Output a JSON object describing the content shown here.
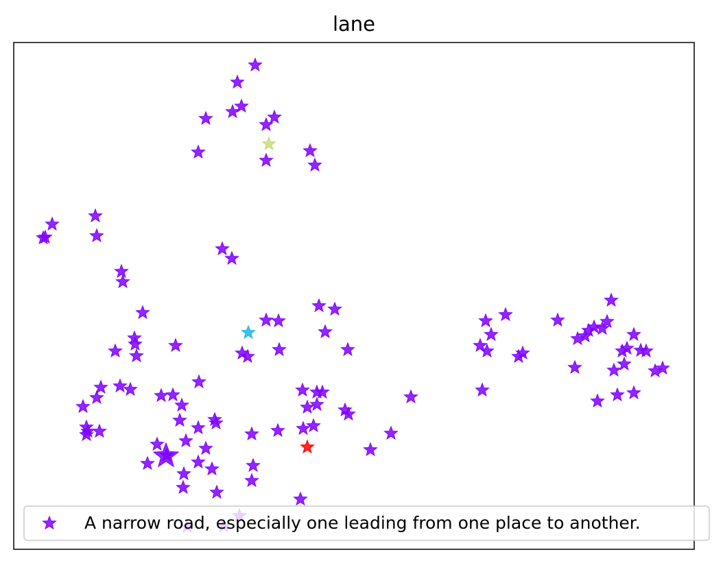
{
  "chart_data": {
    "type": "scatter",
    "title": "lane",
    "xlabel": "",
    "ylabel": "",
    "axes_ticks_visible": false,
    "grid": false,
    "legend": {
      "placement": "lower-right",
      "entries": [
        "A narrow road, especially one leading from one place to another."
      ]
    },
    "marker": "star",
    "colors": {
      "main": "#7f00ff",
      "highlight_red": "#ff0000",
      "highlight_cyan": "#1fb4e6",
      "highlight_olive": "#c8dc78"
    },
    "series": [
      {
        "name": "A narrow road, especially one leading from one place to another.",
        "color": "#7f00ff",
        "points": [
          [
            372,
            95
          ],
          [
            346,
            120
          ],
          [
            352,
            155
          ],
          [
            339,
            163
          ],
          [
            300,
            173
          ],
          [
            400,
            171
          ],
          [
            388,
            182
          ],
          [
            452,
            220
          ],
          [
            459,
            241
          ],
          [
            289,
            222
          ],
          [
            388,
            234
          ],
          [
            76,
            327
          ],
          [
            66,
            346
          ],
          [
            63,
            347
          ],
          [
            139,
            315
          ],
          [
            141,
            344
          ],
          [
            324,
            363
          ],
          [
            338,
            377
          ],
          [
            177,
            396
          ],
          [
            179,
            411
          ],
          [
            208,
            456
          ],
          [
            465,
            446
          ],
          [
            488,
            451
          ],
          [
            388,
            467
          ],
          [
            406,
            468
          ],
          [
            474,
            484
          ],
          [
            196,
            493
          ],
          [
            197,
            502
          ],
          [
            256,
            504
          ],
          [
            168,
            512
          ],
          [
            199,
            519
          ],
          [
            353,
            515
          ],
          [
            361,
            520
          ],
          [
            407,
            510
          ],
          [
            507,
            510
          ],
          [
            891,
            438
          ],
          [
            737,
            459
          ],
          [
            708,
            468
          ],
          [
            813,
            467
          ],
          [
            885,
            469
          ],
          [
            866,
            477
          ],
          [
            878,
            479
          ],
          [
            858,
            482
          ],
          [
            853,
            490
          ],
          [
            842,
            494
          ],
          [
            924,
            488
          ],
          [
            716,
            488
          ],
          [
            700,
            504
          ],
          [
            710,
            512
          ],
          [
            756,
            520
          ],
          [
            762,
            515
          ],
          [
            907,
            512
          ],
          [
            914,
            508
          ],
          [
            934,
            511
          ],
          [
            942,
            512
          ],
          [
            838,
            536
          ],
          [
            895,
            540
          ],
          [
            910,
            531
          ],
          [
            955,
            541
          ],
          [
            966,
            537
          ],
          [
            703,
            569
          ],
          [
            871,
            585
          ],
          [
            900,
            576
          ],
          [
            924,
            573
          ],
          [
            290,
            557
          ],
          [
            147,
            565
          ],
          [
            175,
            563
          ],
          [
            190,
            568
          ],
          [
            141,
            580
          ],
          [
            235,
            577
          ],
          [
            252,
            576
          ],
          [
            121,
            593
          ],
          [
            265,
            591
          ],
          [
            441,
            569
          ],
          [
            462,
            572
          ],
          [
            470,
            572
          ],
          [
            599,
            579
          ],
          [
            448,
            594
          ],
          [
            462,
            590
          ],
          [
            503,
            598
          ],
          [
            508,
            604
          ],
          [
            262,
            613
          ],
          [
            313,
            612
          ],
          [
            315,
            617
          ],
          [
            126,
            623
          ],
          [
            128,
            629
          ],
          [
            145,
            629
          ],
          [
            126,
            634
          ],
          [
            289,
            624
          ],
          [
            367,
            633
          ],
          [
            405,
            628
          ],
          [
            442,
            625
          ],
          [
            457,
            621
          ],
          [
            570,
            632
          ],
          [
            271,
            643
          ],
          [
            229,
            648
          ],
          [
            300,
            654
          ],
          [
            540,
            656
          ],
          [
            243,
            664
          ],
          [
            215,
            676
          ],
          [
            289,
            674
          ],
          [
            309,
            684
          ],
          [
            369,
            679
          ],
          [
            268,
            691
          ],
          [
            367,
            701
          ],
          [
            267,
            711
          ],
          [
            316,
            718
          ],
          [
            438,
            728
          ],
          [
            349,
            752
          ],
          [
            326,
            767
          ],
          [
            273,
            768
          ]
        ]
      },
      {
        "name": "",
        "color": "#ff0000",
        "points": [
          [
            448,
            652
          ]
        ]
      },
      {
        "name": "",
        "color": "#1fb4e6",
        "points": [
          [
            362,
            485
          ]
        ]
      },
      {
        "name": "",
        "color": "#c8dc78",
        "points": [
          [
            392,
            210
          ]
        ]
      },
      {
        "name": "",
        "color": "#7f00ff",
        "size": "large",
        "points": [
          [
            242,
            665
          ]
        ]
      }
    ]
  }
}
